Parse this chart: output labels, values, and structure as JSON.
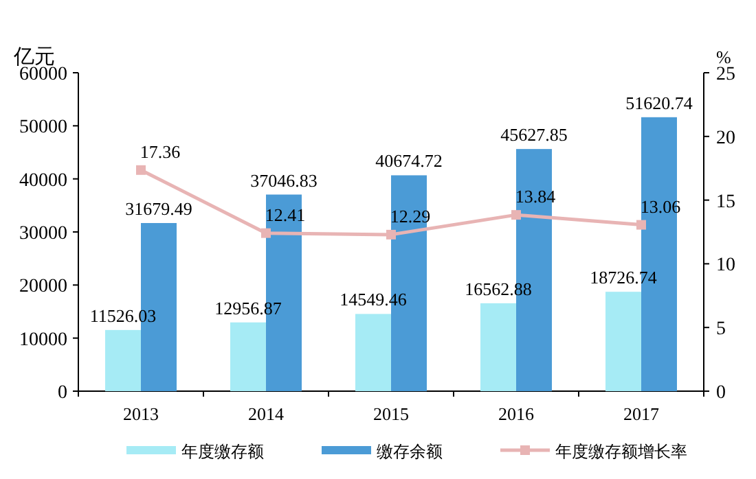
{
  "chart_data": {
    "type": "bar",
    "ylabel": "亿元",
    "y2label": "%",
    "categories": [
      "2013",
      "2014",
      "2015",
      "2016",
      "2017"
    ],
    "series": [
      {
        "name": "年度缴存额",
        "color": "#a6ebf5",
        "values": [
          11526.03,
          12956.87,
          14549.46,
          16562.88,
          18726.74
        ]
      },
      {
        "name": "缴存余额",
        "color": "#4b9bd6",
        "values": [
          31679.49,
          37046.83,
          40674.72,
          45627.85,
          51620.74
        ]
      },
      {
        "name": "年度缴存额增长率",
        "type": "line",
        "axis": "y2",
        "color": "#e8b4b4",
        "marker": "square",
        "values": [
          17.36,
          12.41,
          12.29,
          13.84,
          13.06
        ]
      }
    ],
    "ylim": [
      0,
      60000
    ],
    "yticks": [
      0,
      10000,
      20000,
      30000,
      40000,
      50000,
      60000
    ],
    "y2lim": [
      0,
      25
    ],
    "y2ticks": [
      0,
      5,
      10,
      15,
      20,
      25
    ],
    "data_labels": true,
    "legend": "bottom",
    "grid": false
  }
}
